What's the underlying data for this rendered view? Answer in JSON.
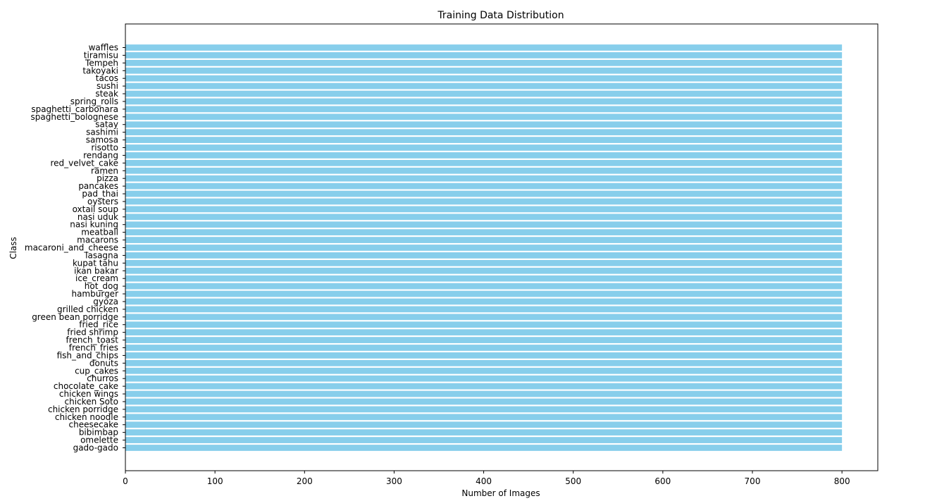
{
  "chart_data": {
    "type": "bar",
    "orientation": "horizontal",
    "title": "Training Data Distribution",
    "xlabel": "Number of Images",
    "ylabel": "Class",
    "xlim": [
      0,
      840
    ],
    "xticks": [
      0,
      100,
      200,
      300,
      400,
      500,
      600,
      700,
      800
    ],
    "grid": false,
    "bar_color": "#87ceeb",
    "categories": [
      "gado-gado",
      "omelette",
      "bibimbap",
      "cheesecake",
      "chicken noodle",
      "chicken porridge",
      "chicken Soto",
      "chicken wings",
      "chocolate_cake",
      "churros",
      "cup_cakes",
      "donuts",
      "fish_and_chips",
      "french_fries",
      "french_toast",
      "fried shrimp",
      "fried_rice",
      "green bean porridge",
      "grilled chicken",
      "gyoza",
      "hamburger",
      "hot_dog",
      "ice_cream",
      "ikan bakar",
      "kupat tahu",
      "lasagna",
      "macaroni_and_cheese",
      "macarons",
      "meatball",
      "nasi kuning",
      "nasi uduk",
      "oxtail soup",
      "oysters",
      "pad_thai",
      "pancakes",
      "pizza",
      "ramen",
      "red_velvet_cake",
      "rendang",
      "risotto",
      "samosa",
      "sashimi",
      "satay",
      "spaghetti_bolognese",
      "spaghetti_carbonara",
      "spring_rolls",
      "steak",
      "sushi",
      "tacos",
      "takoyaki",
      "Tempeh",
      "tiramisu",
      "waffles"
    ],
    "values": [
      800,
      800,
      800,
      800,
      800,
      800,
      800,
      800,
      800,
      800,
      800,
      800,
      800,
      800,
      800,
      800,
      800,
      800,
      800,
      800,
      800,
      800,
      800,
      800,
      800,
      800,
      800,
      800,
      800,
      800,
      800,
      800,
      800,
      800,
      800,
      800,
      800,
      800,
      800,
      800,
      800,
      800,
      800,
      800,
      800,
      800,
      800,
      800,
      800,
      800,
      800,
      800,
      800
    ]
  }
}
